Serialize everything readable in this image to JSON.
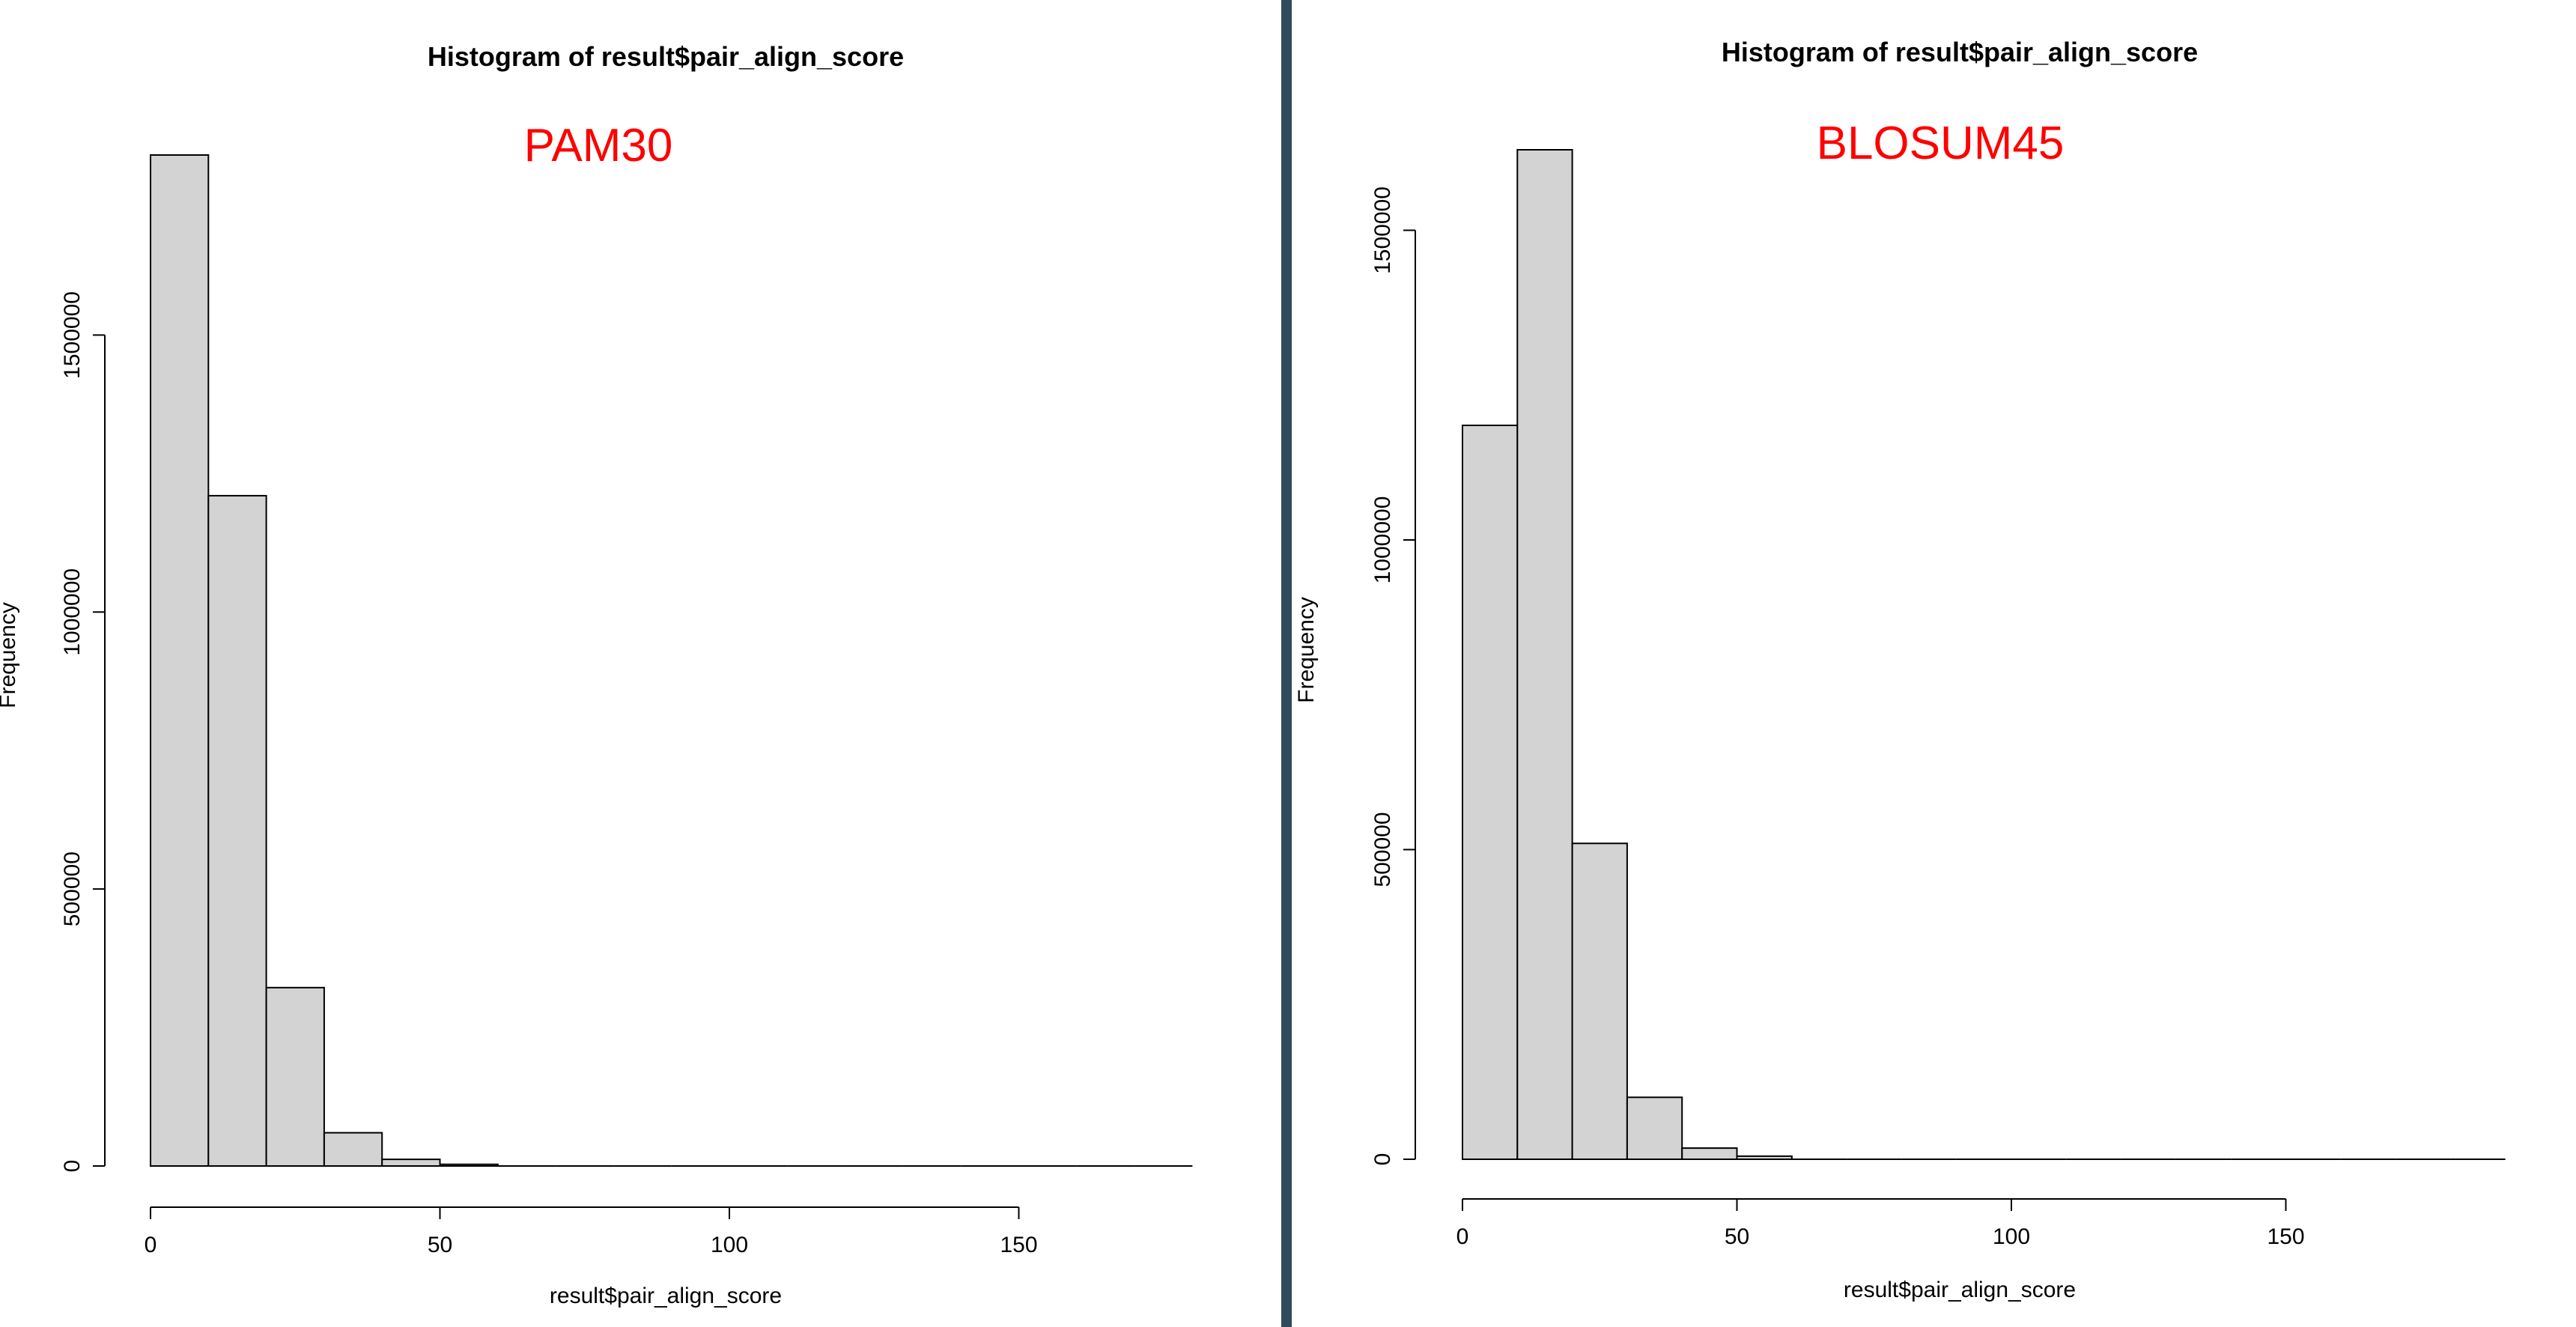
{
  "divider_color": "#2f4a5c",
  "chart_data": [
    {
      "type": "bar",
      "title": "Histogram of result$pair_align_score",
      "annotation": "PAM30",
      "xlabel": "result$pair_align_score",
      "ylabel": "Frequency",
      "bins": [
        [
          0,
          10
        ],
        [
          10,
          20
        ],
        [
          20,
          30
        ],
        [
          30,
          40
        ],
        [
          40,
          50
        ],
        [
          50,
          60
        ],
        [
          60,
          70
        ],
        [
          70,
          80
        ],
        [
          80,
          90
        ],
        [
          90,
          100
        ],
        [
          100,
          110
        ],
        [
          110,
          120
        ],
        [
          120,
          130
        ],
        [
          130,
          140
        ],
        [
          140,
          150
        ],
        [
          150,
          160
        ],
        [
          160,
          170
        ],
        [
          170,
          180
        ]
      ],
      "values": [
        1825000,
        1210000,
        322000,
        60000,
        12000,
        3000,
        0,
        0,
        0,
        0,
        0,
        0,
        0,
        0,
        0,
        0,
        0,
        0
      ],
      "xlim": [
        0,
        180
      ],
      "ylim": [
        0,
        1825000
      ],
      "xticks": [
        0,
        50,
        100,
        150
      ],
      "yticks": [
        0,
        500000,
        1000000,
        1500000
      ],
      "xtick_labels": [
        "0",
        "50",
        "100",
        "150"
      ],
      "ytick_labels": [
        "0",
        "500000",
        "1000000",
        "1500000"
      ],
      "bar_color": "#d3d3d3",
      "annotation_color": "#ff0000"
    },
    {
      "type": "bar",
      "title": "Histogram of result$pair_align_score",
      "annotation": "BLOSUM45",
      "xlabel": "result$pair_align_score",
      "ylabel": "Frequency",
      "bins": [
        [
          0,
          10
        ],
        [
          10,
          20
        ],
        [
          20,
          30
        ],
        [
          30,
          40
        ],
        [
          40,
          50
        ],
        [
          50,
          60
        ],
        [
          60,
          70
        ],
        [
          70,
          80
        ],
        [
          80,
          90
        ],
        [
          90,
          100
        ],
        [
          100,
          110
        ],
        [
          110,
          120
        ],
        [
          120,
          130
        ],
        [
          130,
          140
        ],
        [
          140,
          150
        ],
        [
          150,
          160
        ],
        [
          160,
          170
        ],
        [
          170,
          180
        ],
        [
          180,
          190
        ]
      ],
      "values": [
        1185000,
        1630000,
        510000,
        100000,
        18000,
        5000,
        0,
        0,
        0,
        0,
        0,
        0,
        0,
        0,
        0,
        0,
        0,
        0,
        0
      ],
      "xlim": [
        0,
        190
      ],
      "ylim": [
        0,
        1630000
      ],
      "xticks": [
        0,
        50,
        100,
        150
      ],
      "yticks": [
        0,
        500000,
        1000000,
        1500000
      ],
      "xtick_labels": [
        "0",
        "50",
        "100",
        "150"
      ],
      "ytick_labels": [
        "0",
        "500000",
        "1000000",
        "1500000"
      ],
      "bar_color": "#d3d3d3",
      "annotation_color": "#ff0000"
    }
  ]
}
